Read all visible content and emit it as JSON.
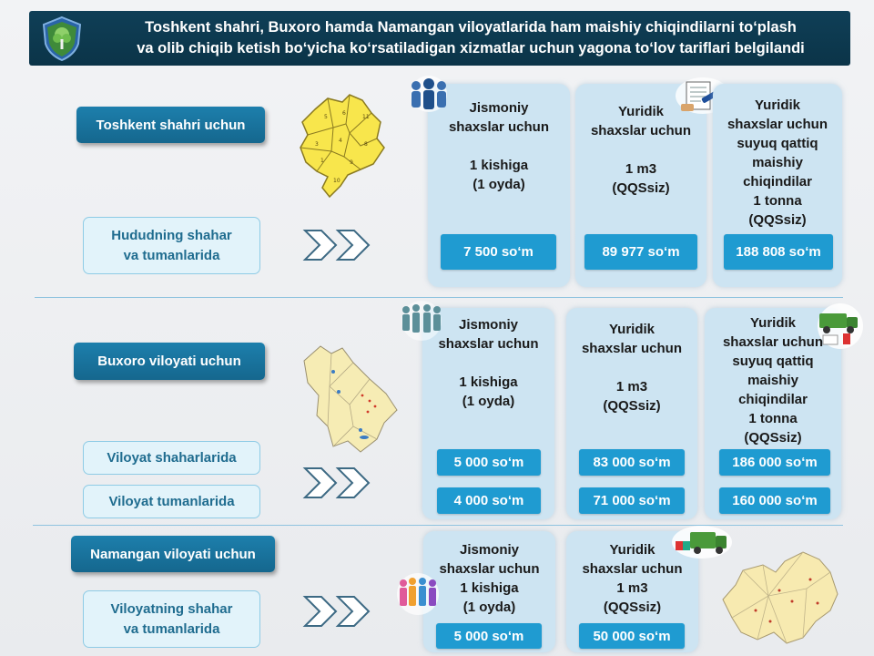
{
  "header": {
    "line1": "Toshkent shahri, Buxoro hamda Namangan viloyatlarida ham maishiy chiqindilarni to‘plash",
    "line2": "va olib chiqib ketish bo‘yicha ko‘rsatiladigan xizmatlar uchun yagona to‘lov tariflari belgilandi"
  },
  "tashkent": {
    "region_label": "Toshkent shahri uchun",
    "area_label": "Hududning shahar\nva tumanlarida",
    "individuals": {
      "text": "Jismoniy\nshaxslar uchun\n\n1 kishiga\n(1 oyda)",
      "price": "7 500 so‘m"
    },
    "legal": {
      "text": "Yuridik\nshaxslar uchun\n\n1 m3\n(QQSsiz)",
      "price": "89 977 so‘m"
    },
    "legal_liquid": {
      "text": "Yuridik\nshaxslar uchun\nsuyuq qattiq\nmaishiy\nchiqindilar\n1 tonna\n(QQSsiz)",
      "price": "188 808 so‘m"
    }
  },
  "bukhara": {
    "region_label": "Buxoro viloyati uchun",
    "area_city": "Viloyat shaharlarida",
    "area_district": "Viloyat tumanlarida",
    "individuals": {
      "text": "Jismoniy\nshaxslar uchun\n\n1 kishiga\n(1 oyda)",
      "price_city": "5 000 so‘m",
      "price_district": "4 000 so‘m"
    },
    "legal": {
      "text": "Yuridik\nshaxslar uchun\n\n1 m3\n(QQSsiz)",
      "price_city": "83 000 so‘m",
      "price_district": "71 000 so‘m"
    },
    "legal_liquid": {
      "text": "Yuridik\nshaxslar uchun\nsuyuq qattiq\nmaishiy\nchiqindilar\n1 tonna\n(QQSsiz)",
      "price_city": "186 000 so‘m",
      "price_district": "160 000 so‘m"
    }
  },
  "namangan": {
    "region_label": "Namangan viloyati uchun",
    "area_label": "Viloyatning shahar\nva tumanlarida",
    "individuals": {
      "text": "Jismoniy\nshaxslar uchun\n1 kishiga\n(1 oyda)",
      "price": "5 000 so‘m"
    },
    "legal": {
      "text": "Yuridik\nshaxslar uchun\n1 m3\n(QQSsiz)",
      "price": "50 000 so‘m"
    }
  },
  "colors": {
    "header_bg": "#0f3f57",
    "region_button": "#1d7fac",
    "sub_box_bg": "#e2f3fa",
    "panel_bg": "#cde4f2",
    "price_bg": "#1f9bd1",
    "map_yellow": "#f6e58a"
  },
  "icons": [
    "shield-tree-logo",
    "people-group-icon",
    "document-sign-icon",
    "garbage-truck-icon",
    "colorful-people-icon",
    "tashkent-map",
    "bukhara-map",
    "namangan-map",
    "double-chevron-icon"
  ]
}
